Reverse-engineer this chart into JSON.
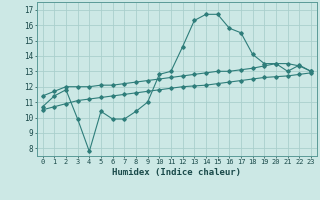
{
  "xlabel": "Humidex (Indice chaleur)",
  "x_ticks": [
    0,
    1,
    2,
    3,
    4,
    5,
    6,
    7,
    8,
    9,
    10,
    11,
    12,
    13,
    14,
    15,
    16,
    17,
    18,
    19,
    20,
    21,
    22,
    23
  ],
  "y_ticks": [
    8,
    9,
    10,
    11,
    12,
    13,
    14,
    15,
    16,
    17
  ],
  "xlim": [
    -0.5,
    23.5
  ],
  "ylim": [
    7.5,
    17.5
  ],
  "bg_color": "#cce8e5",
  "grid_color": "#aacfcc",
  "line_color": "#2e7d7a",
  "line1_x": [
    0,
    1,
    2,
    3,
    4,
    5,
    6,
    7,
    8,
    9,
    10,
    11,
    12,
    13,
    14,
    15,
    16,
    17,
    18,
    19,
    20,
    21,
    22,
    23
  ],
  "line1_y": [
    10.7,
    11.4,
    11.8,
    9.9,
    7.8,
    10.4,
    9.9,
    9.9,
    10.4,
    11.0,
    12.8,
    13.0,
    14.6,
    16.3,
    16.7,
    16.7,
    15.8,
    15.5,
    14.1,
    13.5,
    13.5,
    13.0,
    13.4,
    13.0
  ],
  "line2_x": [
    0,
    1,
    2,
    3,
    4,
    5,
    6,
    7,
    8,
    9,
    10,
    11,
    12,
    13,
    14,
    15,
    16,
    17,
    18,
    19,
    20,
    21,
    22,
    23
  ],
  "line2_y": [
    11.4,
    11.7,
    12.0,
    12.0,
    12.0,
    12.1,
    12.1,
    12.2,
    12.3,
    12.4,
    12.5,
    12.6,
    12.7,
    12.8,
    12.9,
    13.0,
    13.0,
    13.1,
    13.2,
    13.35,
    13.5,
    13.5,
    13.35,
    13.0
  ],
  "line3_x": [
    0,
    1,
    2,
    3,
    4,
    5,
    6,
    7,
    8,
    9,
    10,
    11,
    12,
    13,
    14,
    15,
    16,
    17,
    18,
    19,
    20,
    21,
    22,
    23
  ],
  "line3_y": [
    10.5,
    10.7,
    10.9,
    11.1,
    11.2,
    11.3,
    11.4,
    11.5,
    11.6,
    11.7,
    11.8,
    11.9,
    12.0,
    12.05,
    12.1,
    12.2,
    12.3,
    12.4,
    12.5,
    12.6,
    12.65,
    12.7,
    12.8,
    12.9
  ]
}
